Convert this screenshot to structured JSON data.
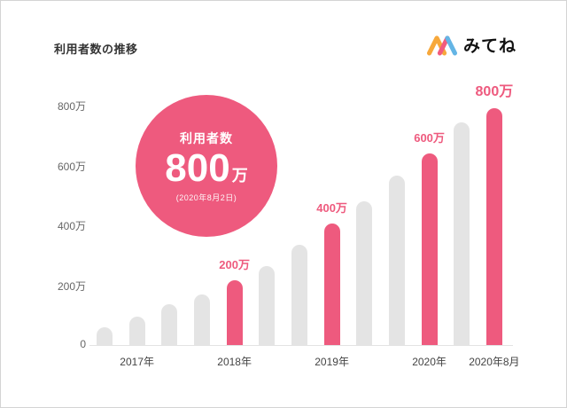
{
  "header": {
    "title": "利用者数の推移",
    "brand": "みてね"
  },
  "badge": {
    "title": "利用者数",
    "value": "800",
    "unit": "万",
    "date": "(2020年8月2日)"
  },
  "chart_data": {
    "type": "bar",
    "title": "利用者数の推移",
    "unit": "万",
    "ylim": [
      0,
      800
    ],
    "yticks": [
      "0",
      "200万",
      "400万",
      "600万",
      "800万"
    ],
    "xticks": [
      "2017年",
      "2018年",
      "2019年",
      "2020年",
      "2020年8月"
    ],
    "legend": null,
    "grid": false,
    "bars": [
      {
        "value": 60,
        "highlight": false
      },
      {
        "value": 95,
        "highlight": false,
        "tick": "2017年"
      },
      {
        "value": 135,
        "highlight": false
      },
      {
        "value": 170,
        "highlight": false
      },
      {
        "value": 215,
        "highlight": true,
        "label": "200万",
        "tick": "2018年"
      },
      {
        "value": 265,
        "highlight": false
      },
      {
        "value": 335,
        "highlight": false
      },
      {
        "value": 405,
        "highlight": true,
        "label": "400万",
        "tick": "2019年"
      },
      {
        "value": 480,
        "highlight": false
      },
      {
        "value": 565,
        "highlight": false
      },
      {
        "value": 640,
        "highlight": true,
        "label": "600万",
        "tick": "2020年"
      },
      {
        "value": 745,
        "highlight": false
      },
      {
        "value": 790,
        "highlight": true,
        "label": "800万",
        "tick": "2020年8月",
        "emphasis": true
      }
    ],
    "colors": {
      "highlight": "#ee5a7e",
      "default": "#e4e4e4",
      "logo_orange": "#f7a83b",
      "logo_pink": "#f25c7e",
      "logo_blue": "#64b5e5"
    }
  }
}
